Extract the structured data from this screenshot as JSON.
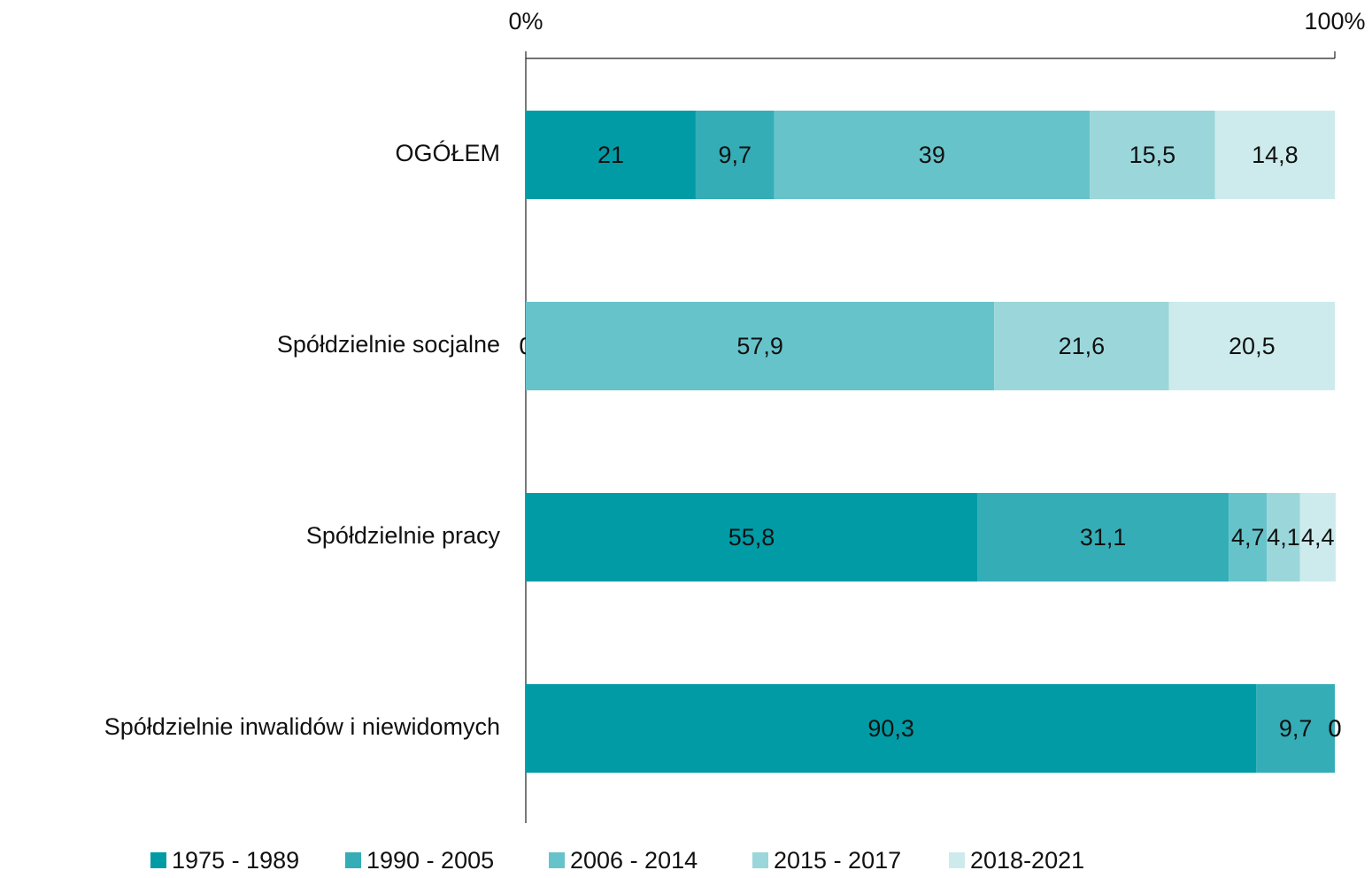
{
  "chart_data": {
    "type": "stacked_barh",
    "categories": [
      "OGÓŁEM",
      "Spółdzielnie socjalne",
      "Spółdzielnie pracy",
      "Spółdzielnie inwalidów i niewidomych"
    ],
    "series": [
      {
        "name": "1975 - 1989",
        "color": "#019ba6",
        "values": [
          21,
          0,
          55.8,
          90.3
        ],
        "value_labels": [
          "21",
          "0",
          "55,8",
          "90,3"
        ]
      },
      {
        "name": "1990 - 2005",
        "color": "#34adb7",
        "values": [
          9.7,
          0,
          31.1,
          9.7
        ],
        "value_labels": [
          "9,7",
          "0",
          "31,1",
          "9,7"
        ]
      },
      {
        "name": "2006 - 2014",
        "color": "#67c3ca",
        "values": [
          39,
          57.9,
          4.7,
          0
        ],
        "value_labels": [
          "39",
          "57,9",
          "4,7",
          "0"
        ]
      },
      {
        "name": "2015 - 2017",
        "color": "#9bd7da",
        "values": [
          15.5,
          21.6,
          4.1,
          0
        ],
        "value_labels": [
          "15,5",
          "21,6",
          "4,1",
          "0"
        ]
      },
      {
        "name": "2018-2021",
        "color": "#cdebec",
        "values": [
          14.8,
          20.5,
          4.4,
          0
        ],
        "value_labels": [
          "14,8",
          "20,5",
          "4,4",
          "0"
        ]
      }
    ],
    "xlim": [
      0,
      100
    ],
    "xticks": [
      {
        "value": 0,
        "label": "0%"
      },
      {
        "value": 100,
        "label": "100%"
      }
    ],
    "legend": "bottom"
  }
}
